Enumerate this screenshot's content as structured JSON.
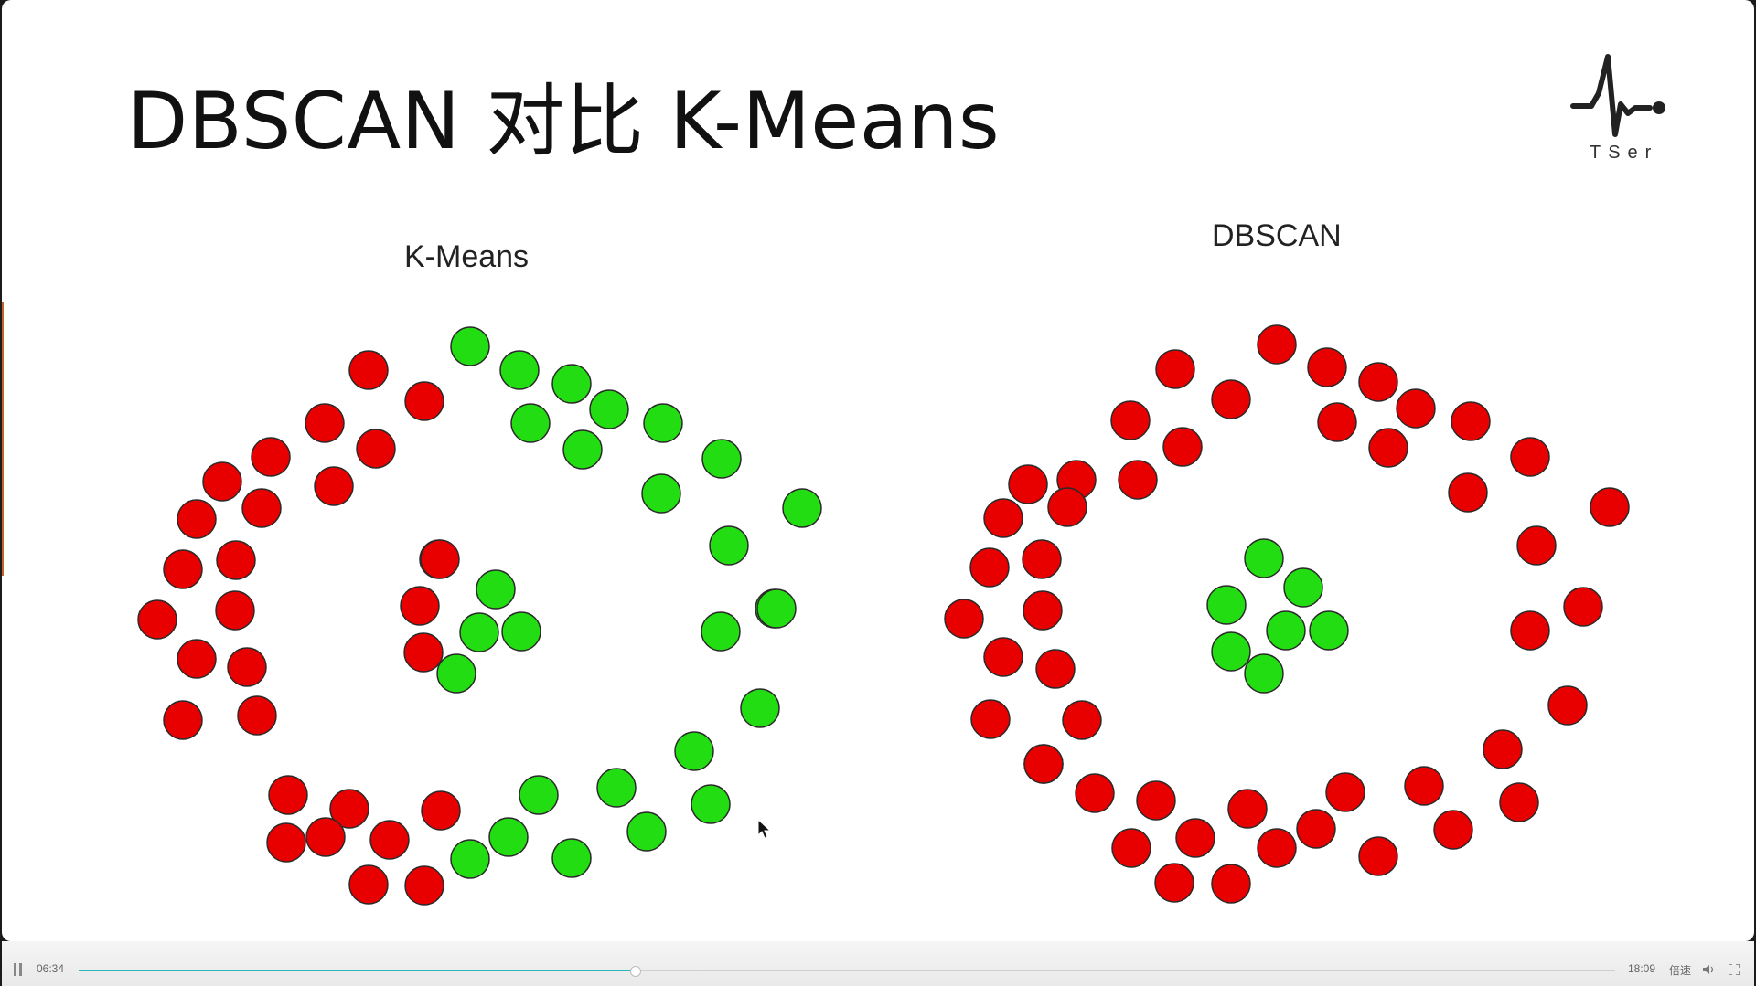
{
  "slide": {
    "title": "DBSCAN 对比 K-Means",
    "logo_text": "TSer",
    "panels": [
      {
        "title": "K-Means"
      },
      {
        "title": "DBSCAN"
      }
    ]
  },
  "colors": {
    "cluster_red": "#e80000",
    "cluster_green": "#22dd11",
    "progress": "#2ab6b8"
  },
  "player": {
    "current_time": "06:34",
    "total_time": "18:09",
    "speed_label": "倍速",
    "progress": 0.362,
    "icons": [
      "pause-icon",
      "volume-icon",
      "fullscreen-icon"
    ]
  },
  "chart_data": [
    {
      "type": "scatter",
      "title": "K-Means",
      "series": [
        {
          "name": "",
          "color": "#e80000",
          "points": []
        },
        {
          "name": "",
          "color": "#22dd11",
          "points": []
        }
      ]
    },
    {
      "type": "scatter",
      "title": "DBSCAN",
      "series": [
        {
          "name": "",
          "color": "#e80000",
          "points": []
        },
        {
          "name": "",
          "color": "#22dd11",
          "points": []
        }
      ]
    }
  ]
}
